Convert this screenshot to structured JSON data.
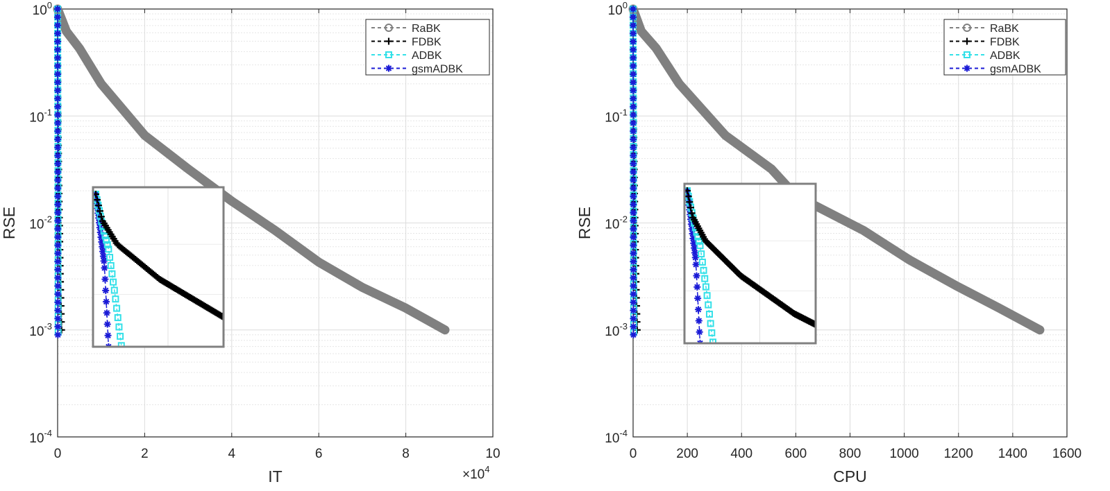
{
  "colors": {
    "RaBK": "#808080",
    "FDBK": "#000000",
    "ADBK": "#33e0e8",
    "gsmADBK": "#1a1ad6",
    "grid": "#dcdcdc",
    "axis": "#262626"
  },
  "chart_data": [
    {
      "type": "line",
      "xlabel": "IT",
      "ylabel": "RSE",
      "x_exponent": {
        "base": "×10",
        "exp": "4"
      },
      "xlim": [
        0,
        100000
      ],
      "ylim": [
        0.0001,
        1
      ],
      "yscale": "log",
      "grid": true,
      "legend": "top-right",
      "xticks": [
        0,
        20000,
        40000,
        60000,
        80000,
        100000
      ],
      "xtick_labels": [
        "0",
        "2",
        "4",
        "6",
        "8",
        "10"
      ],
      "yticks": [
        1,
        0.1,
        0.01,
        0.001,
        0.0001
      ],
      "ytick_labels": [
        {
          "base": "10",
          "exp": "0"
        },
        {
          "base": "10",
          "exp": "-1"
        },
        {
          "base": "10",
          "exp": "-2"
        },
        {
          "base": "10",
          "exp": "-3"
        },
        {
          "base": "10",
          "exp": "-4"
        }
      ],
      "series": [
        {
          "name": "RaBK",
          "marker": "circle",
          "x": [
            0,
            2000,
            5000,
            10000,
            20000,
            30000,
            40000,
            50000,
            60000,
            70000,
            80000,
            89000
          ],
          "y": [
            1,
            0.62,
            0.43,
            0.2,
            0.066,
            0.032,
            0.016,
            0.0085,
            0.0043,
            0.0025,
            0.0016,
            0.001
          ]
        },
        {
          "name": "FDBK",
          "marker": "plus",
          "x": [
            0,
            30,
            100,
            300,
            600,
            900
          ],
          "y": [
            1,
            0.3,
            0.1,
            0.02,
            0.0035,
            0.001
          ]
        },
        {
          "name": "ADBK",
          "marker": "square",
          "x": [
            0,
            30,
            60,
            90,
            120
          ],
          "y": [
            1,
            0.25,
            0.08,
            0.01,
            0.00095
          ]
        },
        {
          "name": "gsmADBK",
          "marker": "asterisk",
          "x": [
            0,
            20,
            40,
            60
          ],
          "y": [
            1,
            0.2,
            0.04,
            0.0009
          ]
        }
      ],
      "inset": {
        "xlim": [
          0,
          600
        ],
        "ylim": [
          0.0009,
          1
        ],
        "yscale": "log"
      }
    },
    {
      "type": "line",
      "xlabel": "CPU",
      "ylabel": "RSE",
      "xlim": [
        0,
        1600
      ],
      "ylim": [
        0.0001,
        1
      ],
      "yscale": "log",
      "grid": true,
      "legend": "top-right",
      "xticks": [
        0,
        200,
        400,
        600,
        800,
        1000,
        1200,
        1400,
        1600
      ],
      "xtick_labels": [
        "0",
        "200",
        "400",
        "600",
        "800",
        "1000",
        "1200",
        "1400",
        "1600"
      ],
      "yticks": [
        1,
        0.1,
        0.01,
        0.001,
        0.0001
      ],
      "ytick_labels": [
        {
          "base": "10",
          "exp": "0"
        },
        {
          "base": "10",
          "exp": "-1"
        },
        {
          "base": "10",
          "exp": "-2"
        },
        {
          "base": "10",
          "exp": "-3"
        },
        {
          "base": "10",
          "exp": "-4"
        }
      ],
      "series": [
        {
          "name": "RaBK",
          "marker": "circle",
          "x": [
            0,
            30,
            85,
            170,
            340,
            510,
            600,
            850,
            1020,
            1190,
            1350,
            1500
          ],
          "y": [
            1,
            0.62,
            0.43,
            0.2,
            0.066,
            0.032,
            0.018,
            0.0085,
            0.0045,
            0.0026,
            0.0016,
            0.001
          ]
        },
        {
          "name": "FDBK",
          "marker": "plus",
          "x": [
            0,
            0.5,
            1.7,
            5,
            10,
            15
          ],
          "y": [
            1,
            0.3,
            0.1,
            0.02,
            0.0035,
            0.001
          ]
        },
        {
          "name": "ADBK",
          "marker": "square",
          "x": [
            0,
            0.6,
            1.2,
            1.8,
            2.4
          ],
          "y": [
            1,
            0.25,
            0.08,
            0.01,
            0.00095
          ]
        },
        {
          "name": "gsmADBK",
          "marker": "asterisk",
          "x": [
            0,
            0.4,
            0.8,
            1.2
          ],
          "y": [
            1,
            0.2,
            0.04,
            0.0009
          ]
        }
      ],
      "inset": {
        "xlim": [
          0,
          12
        ],
        "ylim": [
          0.0009,
          1
        ],
        "yscale": "log"
      }
    }
  ]
}
